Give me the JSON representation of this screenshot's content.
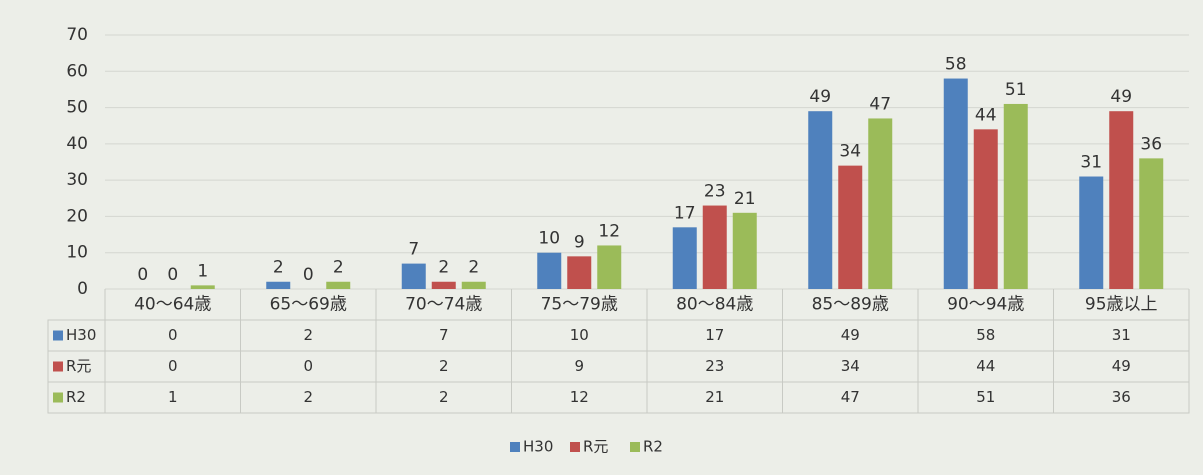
{
  "chart_data": {
    "type": "bar",
    "categories": [
      "40〜64歳",
      "65〜69歳",
      "70〜74歳",
      "75〜79歳",
      "80〜84歳",
      "85〜89歳",
      "90〜94歳",
      "95歳以上"
    ],
    "series": [
      {
        "name": "H30",
        "color": "#4f81bd",
        "values": [
          0,
          2,
          7,
          10,
          17,
          49,
          58,
          31
        ]
      },
      {
        "name": "R元",
        "color": "#c0504d",
        "values": [
          0,
          0,
          2,
          9,
          23,
          34,
          44,
          49
        ]
      },
      {
        "name": "R2",
        "color": "#9bbb59",
        "values": [
          1,
          2,
          2,
          12,
          21,
          47,
          51,
          36
        ]
      }
    ],
    "ylim": [
      0,
      70
    ],
    "yticks": [
      0,
      10,
      20,
      30,
      40,
      50,
      60,
      70
    ],
    "grid": true,
    "legend": "bottom"
  }
}
